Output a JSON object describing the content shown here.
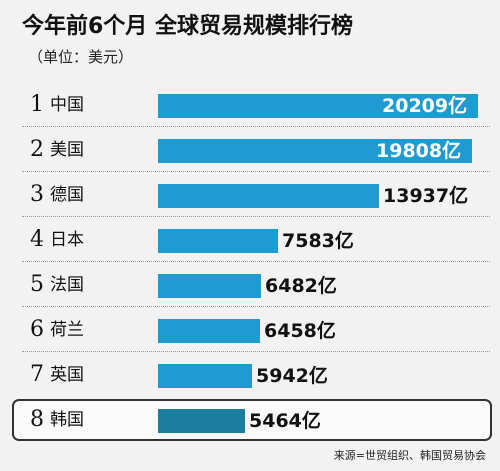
{
  "chart_data": {
    "type": "bar",
    "orientation": "horizontal",
    "title": "今年前6个月  全球贸易规模排行榜",
    "subtitle": "（单位：美元）",
    "source": "来源=世贸组织、韩国贸易协会",
    "unit": "亿",
    "highlight": "韩国",
    "grid": false,
    "rows": [
      {
        "rank": "1",
        "country": "中国",
        "value": 20209,
        "label": "20209亿"
      },
      {
        "rank": "2",
        "country": "美国",
        "value": 19808,
        "label": "19808亿"
      },
      {
        "rank": "3",
        "country": "德国",
        "value": 13937,
        "label": "13937亿"
      },
      {
        "rank": "4",
        "country": "日本",
        "value": 7583,
        "label": "7583亿"
      },
      {
        "rank": "5",
        "country": "法国",
        "value": 6482,
        "label": "6482亿"
      },
      {
        "rank": "6",
        "country": "荷兰",
        "value": 6458,
        "label": "6458亿"
      },
      {
        "rank": "7",
        "country": "英国",
        "value": 5942,
        "label": "5942亿"
      },
      {
        "rank": "8",
        "country": "韩国",
        "value": 5464,
        "label": "5464亿"
      }
    ],
    "colors": {
      "bar": "#1f9bd1",
      "highlight_bar": "#1c7d9e"
    }
  }
}
